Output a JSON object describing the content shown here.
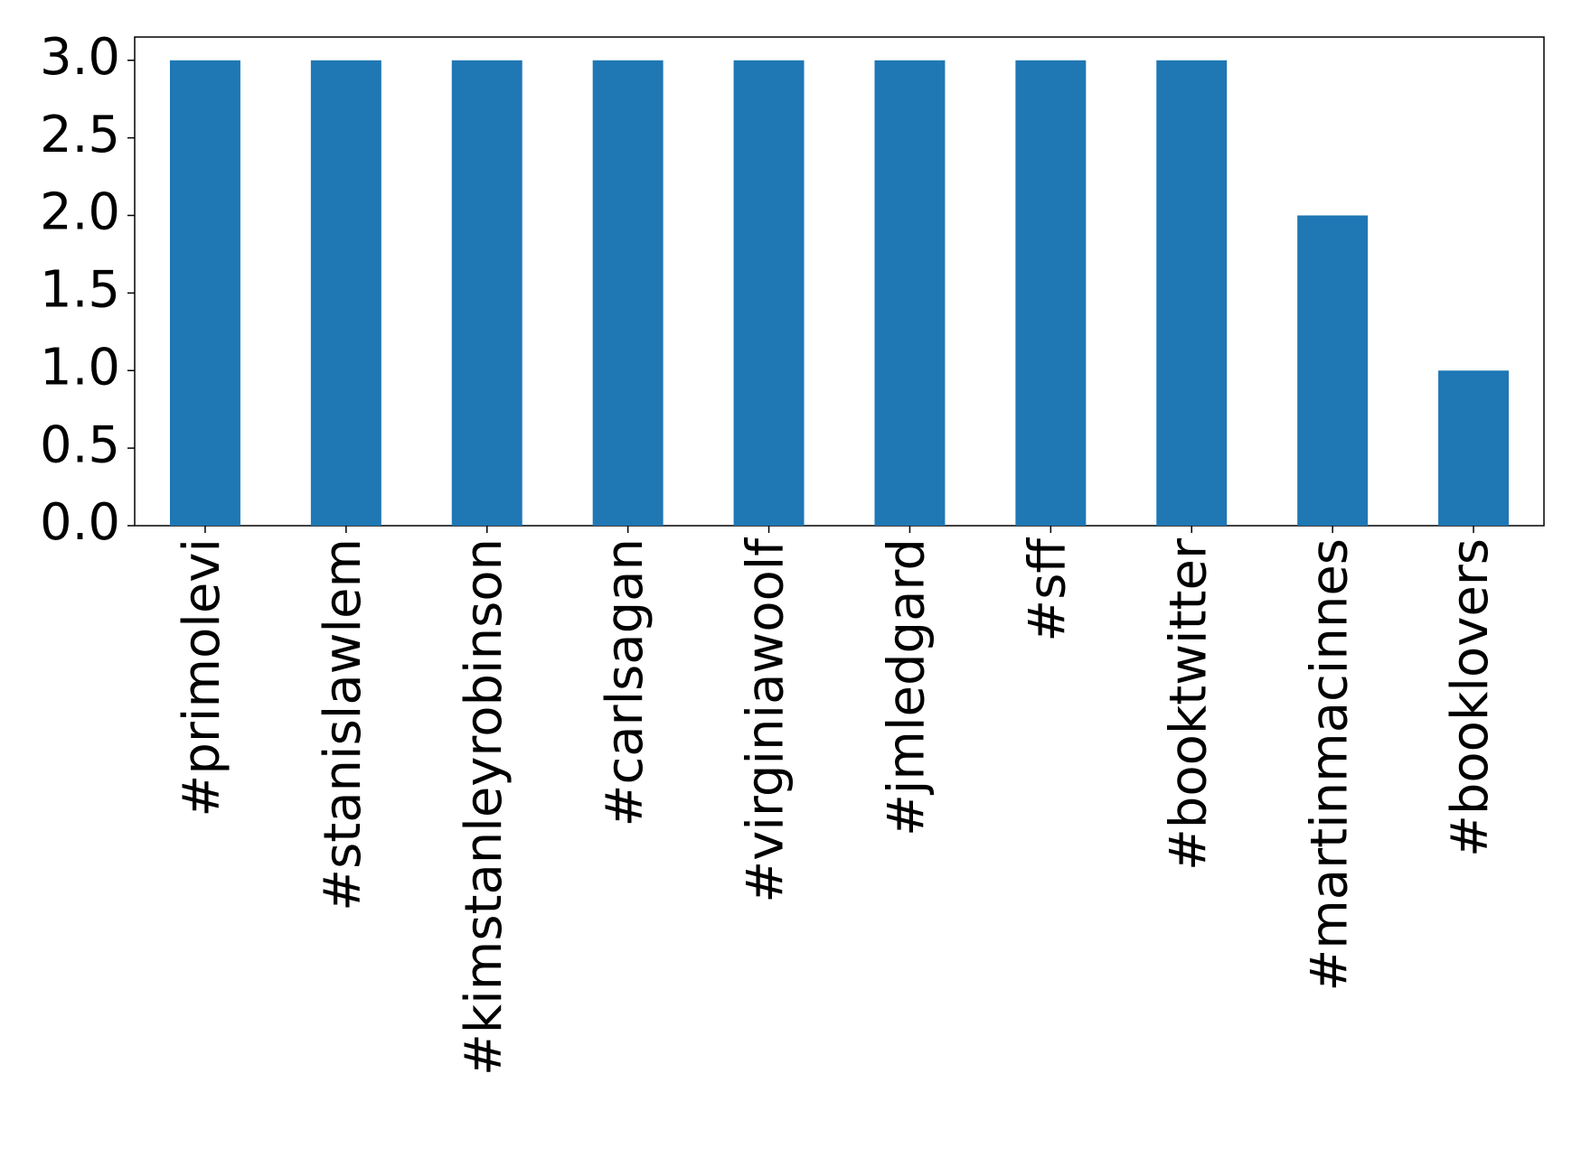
{
  "chart_data": {
    "type": "bar",
    "categories": [
      "#primolevi",
      "#stanislawlem",
      "#kimstanleyrobinson",
      "#carlsagan",
      "#virginiawoolf",
      "#jmledgard",
      "#sff",
      "#booktwitter",
      "#martinmacinnes",
      "#booklovers"
    ],
    "values": [
      3,
      3,
      3,
      3,
      3,
      3,
      3,
      3,
      2,
      1
    ],
    "color": "#1f77b4",
    "ylim": [
      0,
      3.15
    ],
    "yticks": [
      {
        "value": 0,
        "label": "0.0"
      },
      0.5,
      {
        "value": 1,
        "label": "1.0"
      },
      1.5,
      {
        "value": 2,
        "label": "2.0"
      },
      2.5,
      {
        "value": 3,
        "label": "3.0"
      }
    ],
    "grid": false
  }
}
